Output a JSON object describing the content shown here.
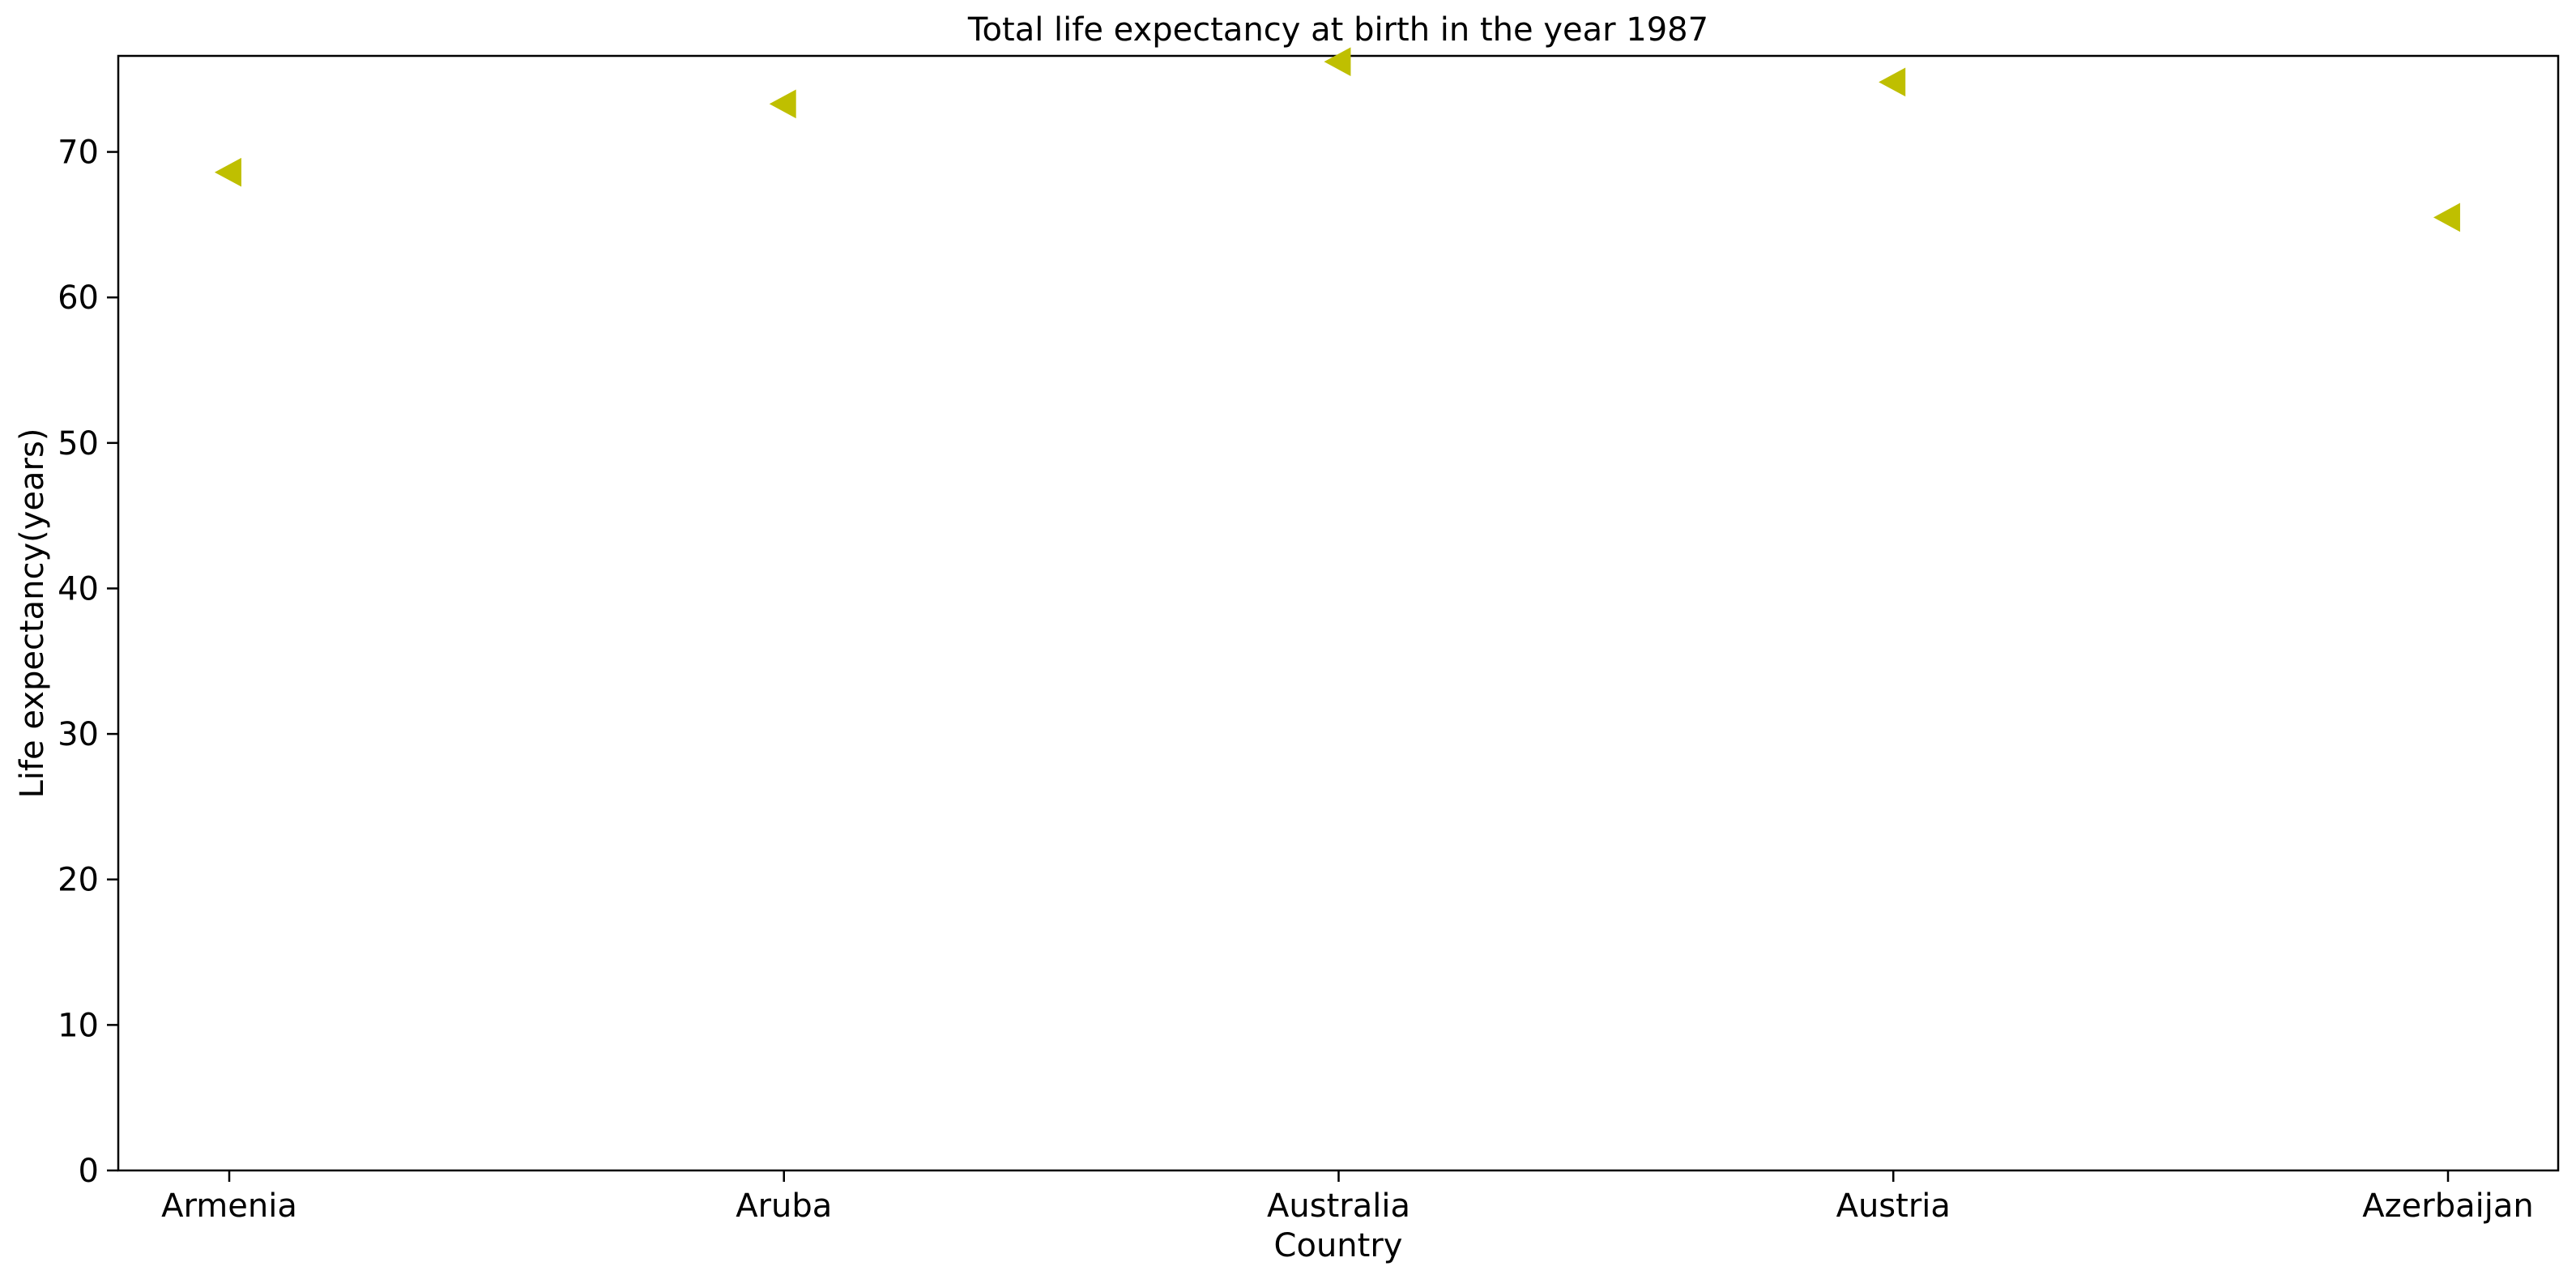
{
  "chart_data": {
    "type": "scatter",
    "title": "Total life expectancy at birth in the year 1987",
    "xlabel": "Country",
    "ylabel": "Life expectancy(years)",
    "categories": [
      "Armenia",
      "Aruba",
      "Australia",
      "Austria",
      "Azerbaijan"
    ],
    "series": [
      {
        "values": [
          68.6,
          73.3,
          76.2,
          74.8,
          65.5
        ],
        "color": "#bfbf00",
        "marker": "triangle-left"
      }
    ],
    "ylim": [
      0,
      76.6
    ],
    "yticks": [
      0,
      10,
      20,
      30,
      40,
      50,
      60,
      70
    ],
    "grid": false,
    "legend": "none"
  }
}
